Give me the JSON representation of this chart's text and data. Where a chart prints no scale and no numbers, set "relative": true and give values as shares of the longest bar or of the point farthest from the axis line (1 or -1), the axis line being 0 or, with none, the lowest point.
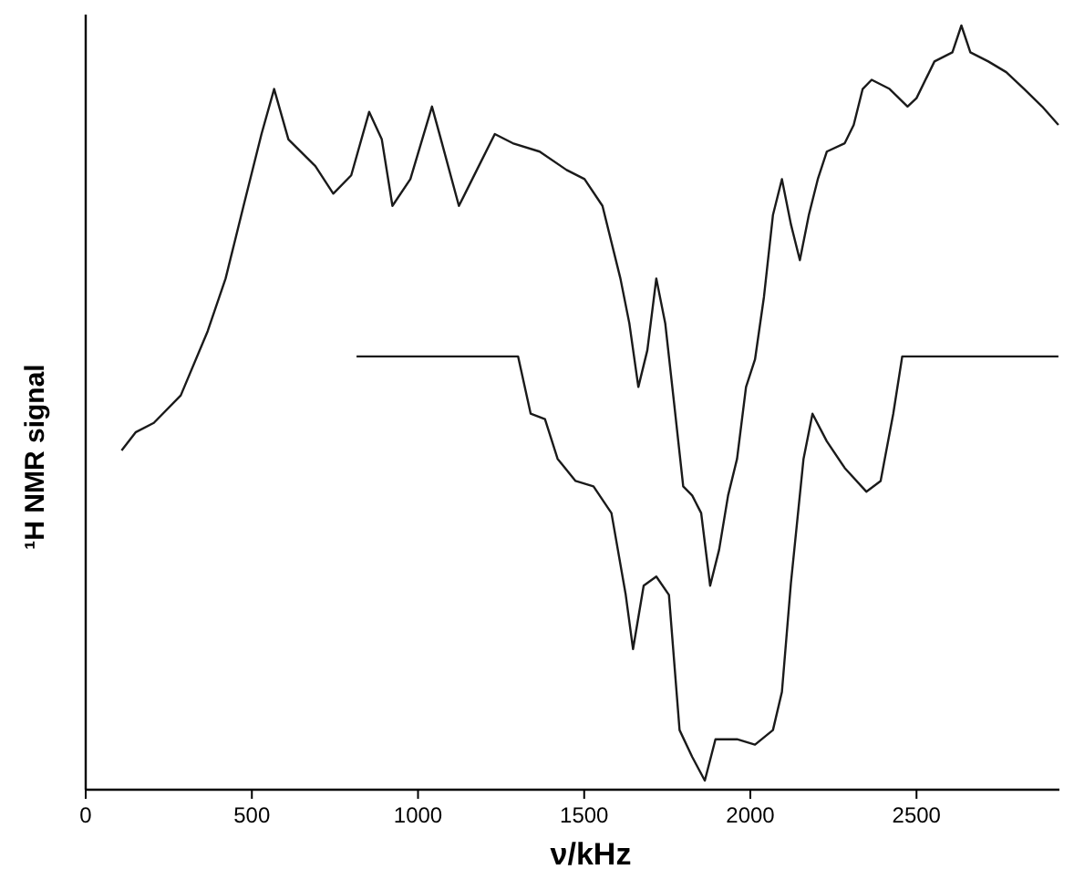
{
  "chart_data": {
    "type": "line",
    "relative": true,
    "xlabel": "ν/kHz",
    "ylabel": "¹H NMR signal",
    "xlim": [
      0,
      2930
    ],
    "xticks": [
      0,
      500,
      1000,
      1500,
      2000,
      2500
    ],
    "line_style": "solid",
    "series": [
      {
        "color": "#1a1a1a",
        "x": [
          108,
          151,
          205,
          286,
          367,
          421,
          475,
          529,
          567,
          610,
          691,
          745,
          799,
          853,
          891,
          923,
          977,
          1042,
          1069,
          1123,
          1177,
          1231,
          1285,
          1366,
          1447,
          1501,
          1555,
          1609,
          1636,
          1663,
          1690,
          1717,
          1744,
          1771,
          1798,
          1825,
          1852,
          1879,
          1906,
          1933,
          1960,
          1987,
          2014,
          2041,
          2068,
          2095,
          2122,
          2149,
          2176,
          2203,
          2230,
          2284,
          2311,
          2338,
          2365,
          2419,
          2473,
          2500,
          2554,
          2608,
          2635,
          2662,
          2716,
          2770,
          2824,
          2878,
          2927
        ],
        "values": [
          0.444,
          0.468,
          0.48,
          0.516,
          0.6,
          0.669,
          0.764,
          0.858,
          0.917,
          0.851,
          0.816,
          0.78,
          0.804,
          0.887,
          0.851,
          0.764,
          0.799,
          0.894,
          0.851,
          0.764,
          0.811,
          0.858,
          0.846,
          0.835,
          0.811,
          0.799,
          0.764,
          0.669,
          0.61,
          0.527,
          0.575,
          0.669,
          0.61,
          0.504,
          0.397,
          0.385,
          0.362,
          0.267,
          0.314,
          0.385,
          0.433,
          0.527,
          0.563,
          0.645,
          0.752,
          0.799,
          0.74,
          0.693,
          0.752,
          0.799,
          0.835,
          0.846,
          0.87,
          0.917,
          0.929,
          0.917,
          0.894,
          0.905,
          0.953,
          0.965,
          1,
          0.965,
          0.953,
          0.939,
          0.917,
          0.894,
          0.87
        ]
      },
      {
        "color": "#1a1a1a",
        "x": [
          815,
          1301,
          1339,
          1382,
          1420,
          1474,
          1528,
          1582,
          1625,
          1647,
          1679,
          1717,
          1755,
          1787,
          1825,
          1863,
          1895,
          1960,
          2014,
          2068,
          2095,
          2122,
          2160,
          2187,
          2230,
          2284,
          2349,
          2392,
          2430,
          2457,
          2927
        ],
        "values": [
          0.567,
          0.567,
          0.492,
          0.485,
          0.433,
          0.404,
          0.397,
          0.362,
          0.255,
          0.184,
          0.267,
          0.279,
          0.255,
          0.078,
          0.043,
          0.012,
          0.066,
          0.066,
          0.059,
          0.078,
          0.128,
          0.27,
          0.433,
          0.492,
          0.456,
          0.421,
          0.39,
          0.404,
          0.492,
          0.567,
          0.567
        ]
      }
    ]
  }
}
